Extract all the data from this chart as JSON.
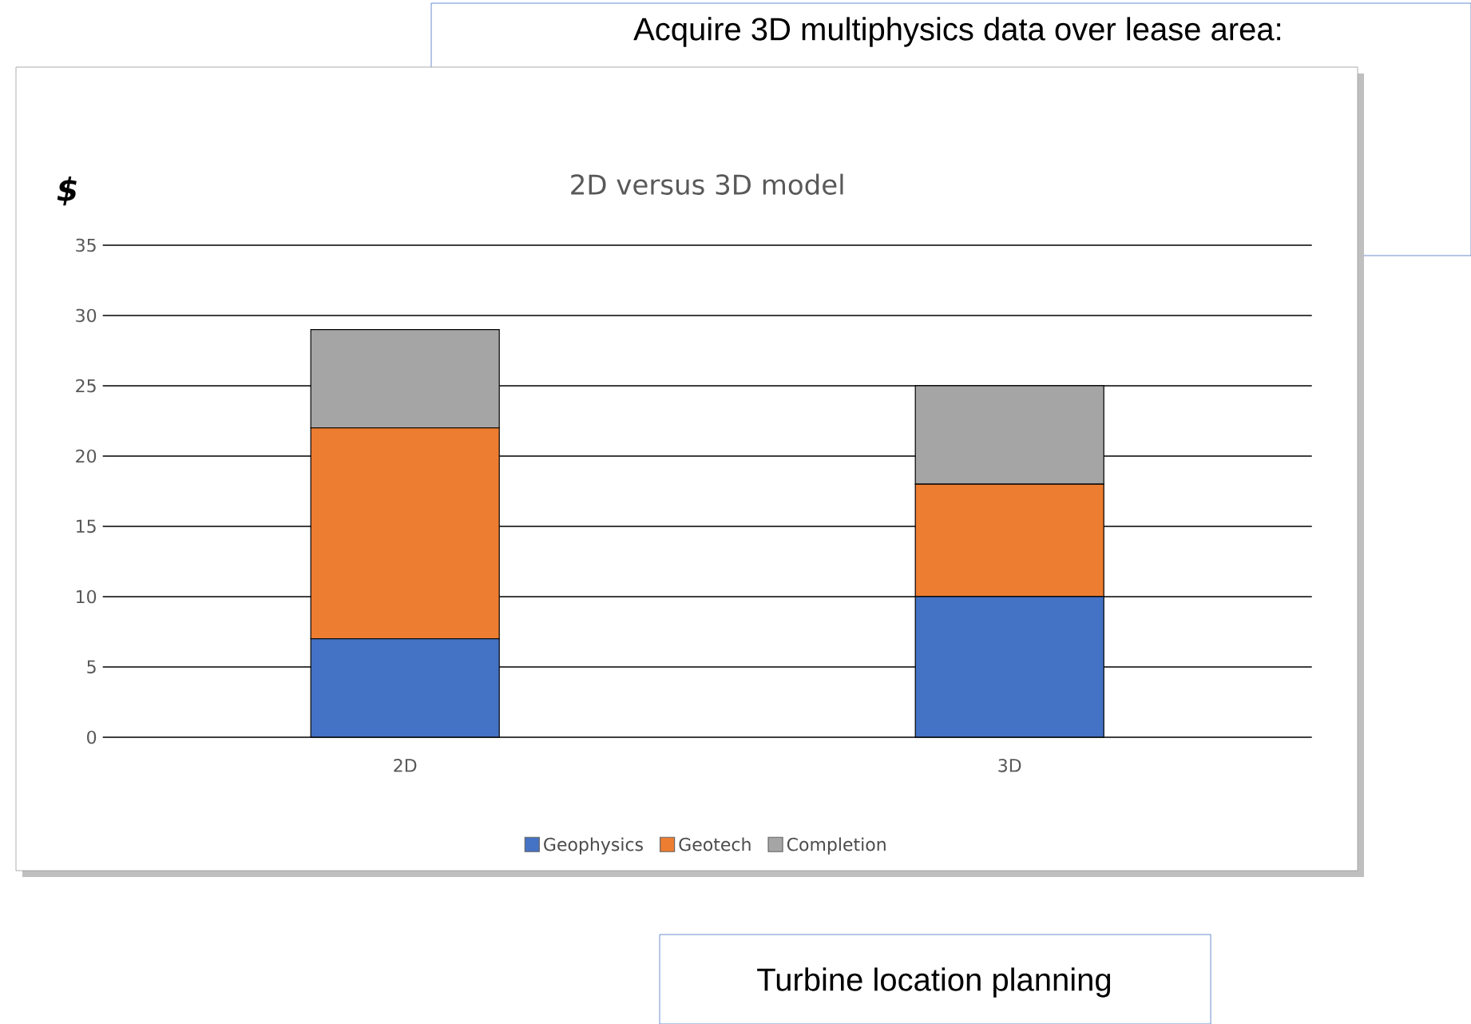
{
  "chart_data": {
    "type": "bar",
    "title": "2D versus 3D model",
    "ylabel": "$",
    "stacked": true,
    "categories": [
      "2D",
      "3D"
    ],
    "series": [
      {
        "name": "Geophysics",
        "color": "#4472c4",
        "values": [
          7,
          10
        ]
      },
      {
        "name": "Geotech",
        "color": "#ed7d31",
        "values": [
          15,
          8
        ]
      },
      {
        "name": "Completion",
        "color": "#a5a5a5",
        "values": [
          7,
          7
        ]
      }
    ],
    "ylim": [
      0,
      35
    ],
    "yticks": [
      0,
      5,
      10,
      15,
      20,
      25,
      30,
      35
    ],
    "grid": "y",
    "legend": "bottom",
    "annotations": [
      "Acquire 3D multiphysics data over lease area:",
      "Turbine location planning"
    ]
  }
}
